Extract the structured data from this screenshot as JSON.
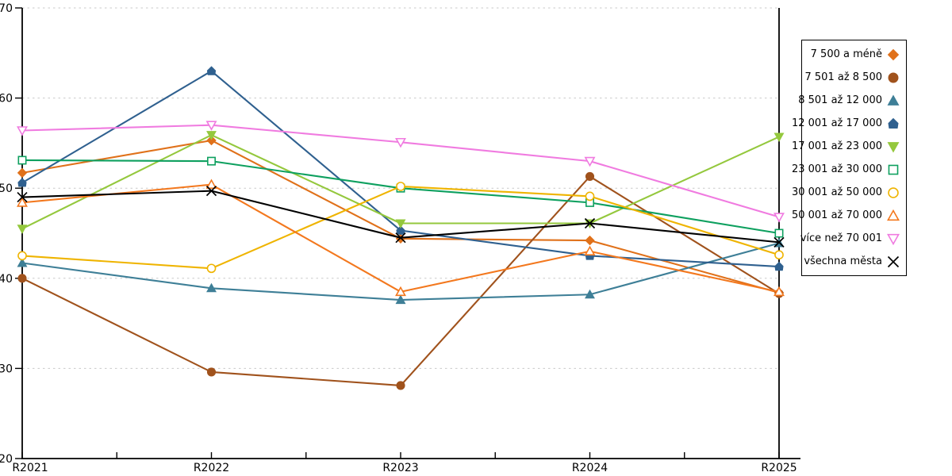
{
  "chart_data": {
    "type": "line",
    "title": "",
    "xlabel": "",
    "ylabel": "",
    "x": [
      "R2021",
      "R2022",
      "R2023",
      "R2024",
      "R2025"
    ],
    "ylim": [
      20,
      70
    ],
    "y_ticks": [
      20,
      30,
      40,
      50,
      60,
      70
    ],
    "grid": "horizontal-dashed",
    "grid_color": "#c9c9c9",
    "axis_color": "#000000",
    "background_color": "#ffffff",
    "legend_position": "right-box",
    "series": [
      {
        "name": "7 500 a méně",
        "color": "#e0711a",
        "marker": "diamond",
        "style": "filled",
        "values": [
          51.7,
          55.3,
          44.4,
          44.2,
          38.4
        ]
      },
      {
        "name": "7 501 až 8 500",
        "color": "#a0521c",
        "marker": "circle",
        "style": "filled",
        "values": [
          40.0,
          29.6,
          28.1,
          51.3,
          38.3
        ]
      },
      {
        "name": "8 501 až 12 000",
        "color": "#3e7f97",
        "marker": "triangle-up",
        "style": "filled",
        "values": [
          41.7,
          38.9,
          37.6,
          38.2,
          43.9
        ]
      },
      {
        "name": "12 001 až 17 000",
        "color": "#2f608f",
        "marker": "pentagon",
        "style": "filled",
        "values": [
          50.6,
          63.0,
          45.3,
          42.5,
          41.3
        ]
      },
      {
        "name": "17 001 až 23 000",
        "color": "#94c83d",
        "marker": "triangle-down",
        "style": "filled",
        "values": [
          45.5,
          55.9,
          46.1,
          46.1,
          55.7
        ]
      },
      {
        "name": "23 001 až 30 000",
        "color": "#0ea05f",
        "marker": "square",
        "style": "open",
        "values": [
          53.1,
          53.0,
          50.0,
          48.4,
          45.0
        ]
      },
      {
        "name": "30 001 až 50 000",
        "color": "#efb400",
        "marker": "circle",
        "style": "open",
        "values": [
          42.5,
          41.1,
          50.2,
          49.1,
          42.6
        ]
      },
      {
        "name": "50 001 až 70 000",
        "color": "#f3781e",
        "marker": "triangle-up",
        "style": "open",
        "values": [
          48.4,
          50.4,
          38.5,
          43.0,
          38.5
        ]
      },
      {
        "name": "více než 70 001",
        "color": "#f07be0",
        "marker": "triangle-down",
        "style": "open",
        "values": [
          56.4,
          57.0,
          55.1,
          53.0,
          46.8
        ]
      },
      {
        "name": "všechna města",
        "color": "#000000",
        "marker": "x",
        "style": "line",
        "values": [
          49.0,
          49.7,
          44.5,
          46.1,
          44.0
        ]
      }
    ]
  }
}
